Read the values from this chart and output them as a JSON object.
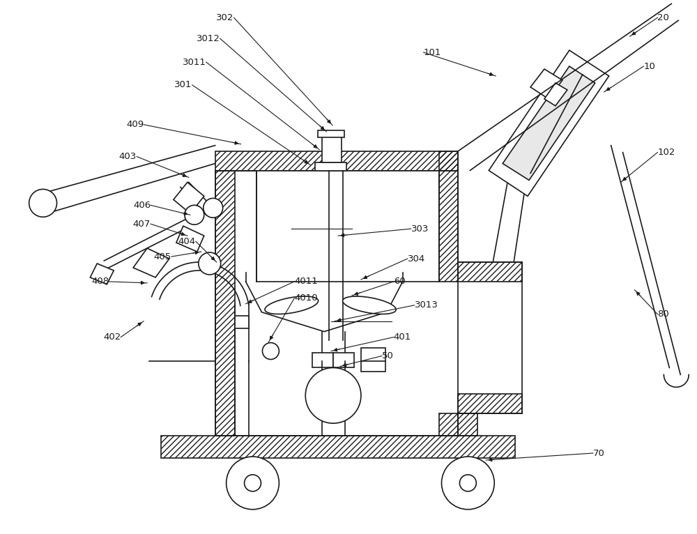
{
  "bg_color": "#ffffff",
  "lc": "#1a1a1a",
  "lw": 1.2,
  "lw_thin": 0.8,
  "fig_w": 10.0,
  "fig_h": 7.66,
  "xlim": [
    0,
    10
  ],
  "ylim": [
    0,
    7.66
  ],
  "labels": [
    [
      "302",
      3.35,
      7.42,
      4.77,
      5.87,
      "right"
    ],
    [
      "3012",
      3.15,
      7.12,
      4.68,
      5.78,
      "right"
    ],
    [
      "3011",
      2.95,
      6.78,
      4.58,
      5.52,
      "right"
    ],
    [
      "301",
      2.75,
      6.45,
      4.45,
      5.3,
      "right"
    ],
    [
      "409",
      2.05,
      5.88,
      3.45,
      5.6,
      "right"
    ],
    [
      "403",
      1.95,
      5.42,
      2.7,
      5.12,
      "right"
    ],
    [
      "406",
      2.15,
      4.72,
      2.72,
      4.58,
      "right"
    ],
    [
      "407",
      2.15,
      4.45,
      2.68,
      4.28,
      "right"
    ],
    [
      "405",
      2.45,
      3.98,
      2.88,
      4.05,
      "right"
    ],
    [
      "404",
      2.8,
      4.2,
      3.1,
      3.9,
      "right"
    ],
    [
      "408",
      1.55,
      3.62,
      2.1,
      3.6,
      "right"
    ],
    [
      "402",
      1.72,
      2.82,
      2.05,
      3.05,
      "right"
    ],
    [
      "4011",
      4.22,
      3.62,
      3.52,
      3.3,
      "left"
    ],
    [
      "4010",
      4.22,
      3.38,
      3.85,
      2.75,
      "left"
    ],
    [
      "303",
      5.9,
      4.38,
      4.85,
      4.28,
      "left"
    ],
    [
      "304",
      5.85,
      3.95,
      5.18,
      3.65,
      "left"
    ],
    [
      "60",
      5.65,
      3.62,
      5.05,
      3.42,
      "left"
    ],
    [
      "3013",
      5.95,
      3.28,
      4.8,
      3.05,
      "left"
    ],
    [
      "401",
      5.65,
      2.82,
      4.75,
      2.62,
      "left"
    ],
    [
      "50",
      5.48,
      2.55,
      4.88,
      2.4,
      "left"
    ],
    [
      "70",
      8.52,
      1.15,
      6.98,
      1.05,
      "left"
    ],
    [
      "80",
      9.45,
      3.15,
      9.12,
      3.5,
      "left"
    ],
    [
      "20",
      9.45,
      7.42,
      9.05,
      7.15,
      "left"
    ],
    [
      "10",
      9.25,
      6.72,
      8.68,
      6.35,
      "left"
    ],
    [
      "101",
      6.08,
      6.92,
      7.12,
      6.58,
      "left"
    ],
    [
      "102",
      9.45,
      5.48,
      8.92,
      5.05,
      "left"
    ]
  ]
}
